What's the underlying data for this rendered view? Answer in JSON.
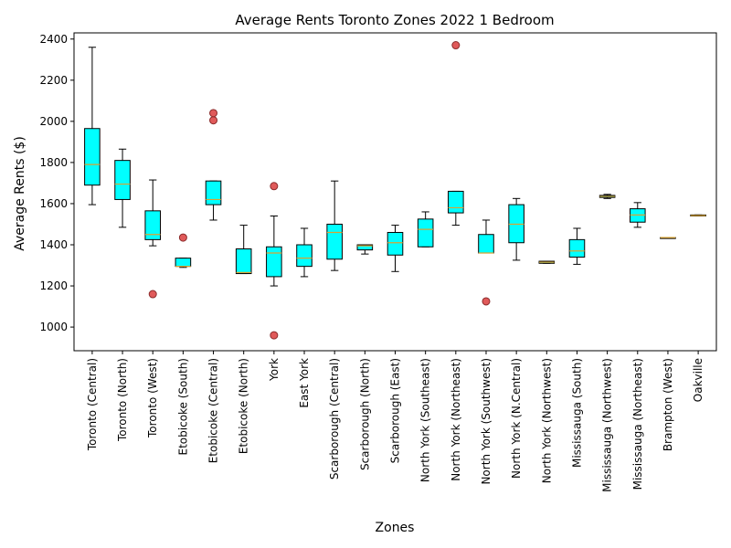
{
  "chart_data": {
    "type": "box",
    "title": "Average Rents Toronto Zones 2022 1 Bedroom",
    "xlabel": "Zones",
    "ylabel": "Average Rents ($)",
    "ylim": [
      885,
      2430
    ],
    "yticks": [
      1000,
      1200,
      1400,
      1600,
      1800,
      2000,
      2200,
      2400
    ],
    "grid": false,
    "colors": {
      "box": "#00ffff",
      "median": "#d9a332",
      "outlier": "#e05a5a"
    },
    "categories": [
      "Toronto (Central)",
      "Toronto (North)",
      "Toronto (West)",
      "Etobicoke (South)",
      "Etobicoke (Central)",
      "Etobicoke (North)",
      "York",
      "East York",
      "Scarborough (Central)",
      "Scarborough (North)",
      "Scarborough (East)",
      "North York (Southeast)",
      "North York (Northeast)",
      "North York (Southwest)",
      "North York (N.Central)",
      "North York (Northwest)",
      "Mississauga (South)",
      "Mississauga (Northwest)",
      "Mississauga (Northeast)",
      "Brampton (West)",
      "Oakville"
    ],
    "boxes": [
      {
        "whislo": 1595,
        "q1": 1690,
        "median": 1790,
        "q3": 1965,
        "whishi": 2360,
        "fliers": []
      },
      {
        "whislo": 1485,
        "q1": 1620,
        "median": 1695,
        "q3": 1810,
        "whishi": 1865,
        "fliers": []
      },
      {
        "whislo": 1395,
        "q1": 1425,
        "median": 1450,
        "q3": 1565,
        "whishi": 1715,
        "fliers": [
          1160
        ]
      },
      {
        "whislo": 1290,
        "q1": 1295,
        "median": 1295,
        "q3": 1335,
        "whishi": 1335,
        "fliers": [
          1435
        ]
      },
      {
        "whislo": 1520,
        "q1": 1595,
        "median": 1620,
        "q3": 1710,
        "whishi": 1710,
        "fliers": [
          2005,
          2040
        ]
      },
      {
        "whislo": 1260,
        "q1": 1260,
        "median": 1265,
        "q3": 1380,
        "whishi": 1495,
        "fliers": []
      },
      {
        "whislo": 1200,
        "q1": 1245,
        "median": 1360,
        "q3": 1390,
        "whishi": 1540,
        "fliers": [
          960,
          1685
        ]
      },
      {
        "whislo": 1245,
        "q1": 1295,
        "median": 1335,
        "q3": 1400,
        "whishi": 1480,
        "fliers": []
      },
      {
        "whislo": 1275,
        "q1": 1330,
        "median": 1460,
        "q3": 1500,
        "whishi": 1710,
        "fliers": []
      },
      {
        "whislo": 1355,
        "q1": 1375,
        "median": 1395,
        "q3": 1400,
        "whishi": 1400,
        "fliers": []
      },
      {
        "whislo": 1270,
        "q1": 1350,
        "median": 1410,
        "q3": 1460,
        "whishi": 1495,
        "fliers": []
      },
      {
        "whislo": 1390,
        "q1": 1390,
        "median": 1475,
        "q3": 1525,
        "whishi": 1560,
        "fliers": []
      },
      {
        "whislo": 1495,
        "q1": 1555,
        "median": 1580,
        "q3": 1660,
        "whishi": 1660,
        "fliers": [
          2370
        ]
      },
      {
        "whislo": 1360,
        "q1": 1360,
        "median": 1360,
        "q3": 1450,
        "whishi": 1520,
        "fliers": [
          1125
        ]
      },
      {
        "whislo": 1325,
        "q1": 1410,
        "median": 1500,
        "q3": 1595,
        "whishi": 1625,
        "fliers": []
      },
      {
        "whislo": 1310,
        "q1": 1310,
        "median": 1315,
        "q3": 1320,
        "whishi": 1320,
        "fliers": []
      },
      {
        "whislo": 1305,
        "q1": 1340,
        "median": 1370,
        "q3": 1425,
        "whishi": 1480,
        "fliers": []
      },
      {
        "whislo": 1625,
        "q1": 1630,
        "median": 1635,
        "q3": 1640,
        "whishi": 1645,
        "fliers": []
      },
      {
        "whislo": 1485,
        "q1": 1510,
        "median": 1545,
        "q3": 1575,
        "whishi": 1605,
        "fliers": []
      },
      {
        "whislo": 1435,
        "q1": 1435,
        "median": 1435,
        "q3": 1435,
        "whishi": 1435,
        "fliers": []
      },
      {
        "whislo": 1540,
        "q1": 1540,
        "median": 1542,
        "q3": 1545,
        "whishi": 1545,
        "fliers": []
      }
    ]
  }
}
